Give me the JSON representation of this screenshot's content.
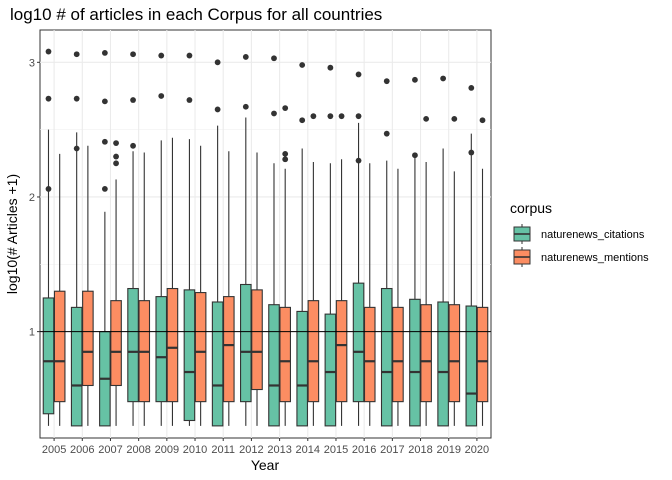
{
  "chart_data": {
    "type": "boxplot",
    "title": "log10 # of articles in each Corpus for all countries",
    "xlabel": "Year",
    "ylabel": "log10(# Articles +1)",
    "ylim": [
      0.21,
      3.24
    ],
    "yticks": [
      1,
      2,
      3
    ],
    "hline": 1,
    "grid": true,
    "legend_position": "right",
    "legend_title": "corpus",
    "categories": [
      "2005",
      "2006",
      "2007",
      "2008",
      "2009",
      "2010",
      "2011",
      "2012",
      "2013",
      "2014",
      "2015",
      "2016",
      "2017",
      "2018",
      "2019",
      "2020"
    ],
    "series": [
      {
        "name": "naturenews_citations",
        "color": "#66c2a5",
        "boxes": [
          {
            "min": 0.3,
            "q1": 0.39,
            "median": 0.78,
            "q3": 1.25,
            "max": 2.5,
            "outliers": [
              3.08,
              2.73,
              2.06
            ]
          },
          {
            "min": 0.3,
            "q1": 0.3,
            "median": 0.6,
            "q3": 1.18,
            "max": 2.48,
            "outliers": [
              3.06,
              2.73,
              2.36
            ]
          },
          {
            "min": 0.3,
            "q1": 0.3,
            "median": 0.65,
            "q3": 1.0,
            "max": 1.89,
            "outliers": [
              3.07,
              2.71,
              2.41,
              2.06
            ]
          },
          {
            "min": 0.3,
            "q1": 0.48,
            "median": 0.85,
            "q3": 1.32,
            "max": 2.34,
            "outliers": [
              3.06,
              2.72,
              2.38
            ]
          },
          {
            "min": 0.3,
            "q1": 0.48,
            "median": 0.81,
            "q3": 1.26,
            "max": 2.42,
            "outliers": [
              3.05,
              2.75
            ]
          },
          {
            "min": 0.3,
            "q1": 0.34,
            "median": 0.7,
            "q3": 1.31,
            "max": 2.43,
            "outliers": [
              3.05,
              2.72
            ]
          },
          {
            "min": 0.3,
            "q1": 0.3,
            "median": 0.6,
            "q3": 1.22,
            "max": 2.53,
            "outliers": [
              3.0,
              2.65
            ]
          },
          {
            "min": 0.3,
            "q1": 0.48,
            "median": 0.85,
            "q3": 1.35,
            "max": 2.59,
            "outliers": [
              3.04,
              2.67
            ]
          },
          {
            "min": 0.3,
            "q1": 0.3,
            "median": 0.6,
            "q3": 1.2,
            "max": 2.25,
            "outliers": [
              3.03,
              2.62
            ]
          },
          {
            "min": 0.3,
            "q1": 0.3,
            "median": 0.6,
            "q3": 1.15,
            "max": 2.36,
            "outliers": [
              2.98,
              2.57
            ]
          },
          {
            "min": 0.3,
            "q1": 0.3,
            "median": 0.7,
            "q3": 1.13,
            "max": 2.25,
            "outliers": [
              2.96,
              2.6
            ]
          },
          {
            "min": 0.3,
            "q1": 0.48,
            "median": 0.85,
            "q3": 1.36,
            "max": 2.55,
            "outliers": [
              2.91,
              2.6,
              2.27
            ]
          },
          {
            "min": 0.3,
            "q1": 0.3,
            "median": 0.7,
            "q3": 1.32,
            "max": 2.27,
            "outliers": [
              2.86,
              2.47
            ]
          },
          {
            "min": 0.3,
            "q1": 0.3,
            "median": 0.7,
            "q3": 1.24,
            "max": 2.29,
            "outliers": [
              2.87,
              2.31
            ]
          },
          {
            "min": 0.3,
            "q1": 0.3,
            "median": 0.7,
            "q3": 1.22,
            "max": 2.36,
            "outliers": [
              2.88
            ]
          },
          {
            "min": 0.3,
            "q1": 0.3,
            "median": 0.54,
            "q3": 1.19,
            "max": 2.47,
            "outliers": [
              2.81,
              2.33
            ]
          }
        ]
      },
      {
        "name": "naturenews_mentions",
        "color": "#fc8d62",
        "boxes": [
          {
            "min": 0.3,
            "q1": 0.48,
            "median": 0.78,
            "q3": 1.3,
            "max": 2.32,
            "outliers": []
          },
          {
            "min": 0.3,
            "q1": 0.6,
            "median": 0.85,
            "q3": 1.3,
            "max": 2.38,
            "outliers": []
          },
          {
            "min": 0.3,
            "q1": 0.6,
            "median": 0.85,
            "q3": 1.23,
            "max": 2.13,
            "outliers": [
              2.4,
              2.3,
              2.25
            ]
          },
          {
            "min": 0.3,
            "q1": 0.48,
            "median": 0.85,
            "q3": 1.23,
            "max": 2.33,
            "outliers": []
          },
          {
            "min": 0.3,
            "q1": 0.48,
            "median": 0.88,
            "q3": 1.32,
            "max": 2.44,
            "outliers": []
          },
          {
            "min": 0.3,
            "q1": 0.48,
            "median": 0.85,
            "q3": 1.29,
            "max": 2.38,
            "outliers": []
          },
          {
            "min": 0.3,
            "q1": 0.48,
            "median": 0.9,
            "q3": 1.26,
            "max": 2.34,
            "outliers": []
          },
          {
            "min": 0.3,
            "q1": 0.57,
            "median": 0.85,
            "q3": 1.31,
            "max": 2.33,
            "outliers": []
          },
          {
            "min": 0.3,
            "q1": 0.48,
            "median": 0.78,
            "q3": 1.18,
            "max": 2.21,
            "outliers": [
              2.66,
              2.32,
              2.28
            ]
          },
          {
            "min": 0.3,
            "q1": 0.48,
            "median": 0.78,
            "q3": 1.23,
            "max": 2.26,
            "outliers": [
              2.6
            ]
          },
          {
            "min": 0.3,
            "q1": 0.48,
            "median": 0.9,
            "q3": 1.23,
            "max": 2.28,
            "outliers": [
              2.6
            ]
          },
          {
            "min": 0.3,
            "q1": 0.48,
            "median": 0.78,
            "q3": 1.18,
            "max": 2.25,
            "outliers": []
          },
          {
            "min": 0.3,
            "q1": 0.48,
            "median": 0.78,
            "q3": 1.18,
            "max": 2.21,
            "outliers": []
          },
          {
            "min": 0.3,
            "q1": 0.48,
            "median": 0.78,
            "q3": 1.2,
            "max": 2.26,
            "outliers": [
              2.58
            ]
          },
          {
            "min": 0.3,
            "q1": 0.48,
            "median": 0.78,
            "q3": 1.2,
            "max": 2.19,
            "outliers": [
              2.58
            ]
          },
          {
            "min": 0.3,
            "q1": 0.48,
            "median": 0.78,
            "q3": 1.18,
            "max": 2.21,
            "outliers": [
              2.57
            ]
          }
        ]
      }
    ]
  }
}
